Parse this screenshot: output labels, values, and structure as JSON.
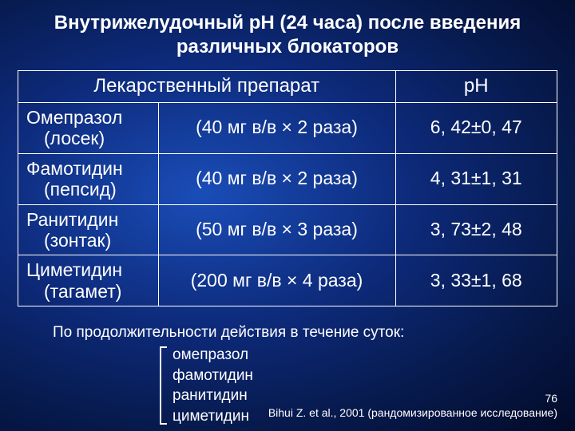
{
  "title": "Внутрижелудочный рН (24 часа) после введения различных блокаторов",
  "title_fontsize": 24,
  "header": {
    "drug": "Лекарственный препарат",
    "ph": "рН",
    "fontsize": 24
  },
  "rows": [
    {
      "name": "Омепразол",
      "brand": "(лосек)",
      "dose": "(40 мг в/в × 2 раза)",
      "ph": "6, 42±0, 47"
    },
    {
      "name": "Фамотидин",
      "brand": "(пепсид)",
      "dose": "(40 мг в/в × 2 раза)",
      "ph": "4, 31±1, 31"
    },
    {
      "name": "Ранитидин",
      "brand": "(зонтак)",
      "dose": "(50 мг в/в × 3 раза)",
      "ph": "3, 73±2, 48"
    },
    {
      "name": "Циметидин",
      "brand": "(тагамет)",
      "dose": "(200 мг в/в × 4 раза)",
      "ph": "3, 33±1, 68"
    }
  ],
  "row_fontsize": 23,
  "footnote": {
    "lead": "По продолжительности действия в течение суток:",
    "items": [
      "омепразол",
      "фамотидин",
      "ранитидин",
      "циметидин"
    ],
    "fontsize": 19
  },
  "citation": {
    "page": "76",
    "text": "Bihui Z. et al., 2001 (рандомизированное исследование)",
    "fontsize": 14
  },
  "colors": {
    "text": "#ffffff",
    "border": "#ffffff",
    "bg_center": "#1a4db8",
    "bg_edge": "#020a28"
  }
}
